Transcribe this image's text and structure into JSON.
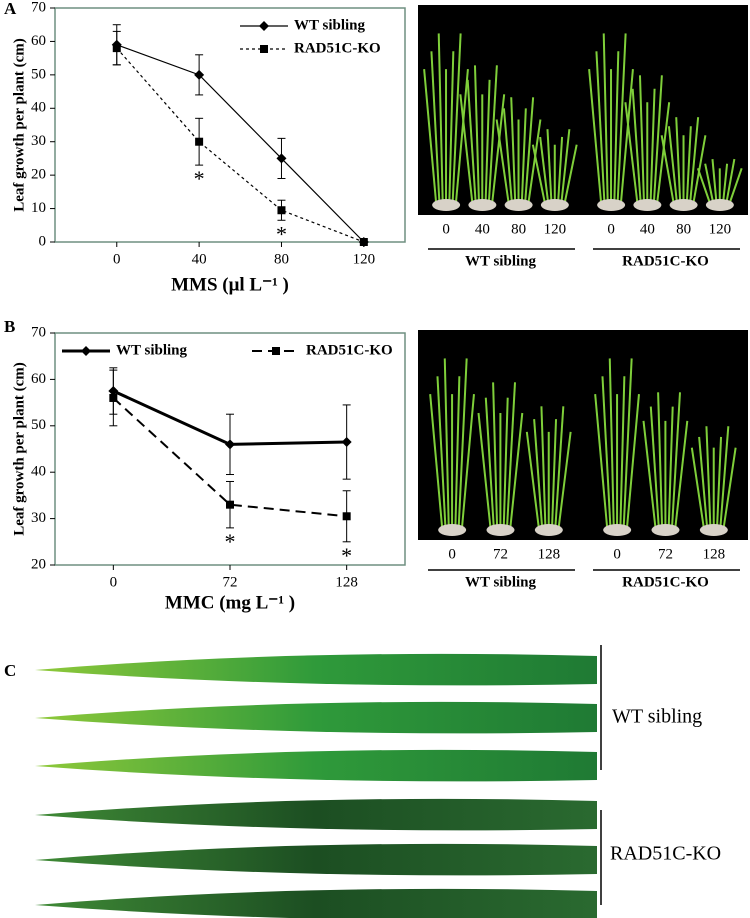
{
  "chart_data": [
    {
      "type": "line",
      "panel": "A",
      "ylabel": "Leaf  growth per plant (cm)",
      "xlabel": "MMS (μl L⁻¹ )",
      "x": [
        0,
        40,
        80,
        120
      ],
      "xlim": [
        -30,
        140
      ],
      "xticks": [
        0,
        40,
        80,
        120
      ],
      "ylim": [
        0,
        70
      ],
      "yticks": [
        0,
        10,
        20,
        30,
        40,
        50,
        60,
        70
      ],
      "legend": "upper right",
      "series": [
        {
          "name": "WT sibling",
          "color": "#000000",
          "line_style": "solid",
          "line_width": 1.2,
          "marker": "diamond",
          "values": [
            59,
            50,
            25,
            0
          ],
          "errors": [
            6,
            6,
            6,
            0
          ]
        },
        {
          "name": "RAD51C-KO",
          "color": "#000000",
          "line_style": "dotted",
          "line_width": 1.2,
          "marker": "square",
          "values": [
            58,
            30,
            9.5,
            0
          ],
          "errors": [
            5,
            7,
            3,
            0
          ],
          "significance": [
            null,
            "*",
            "*",
            null
          ]
        }
      ]
    },
    {
      "type": "line",
      "panel": "B",
      "ylabel": "Leaf  growth per plant (cm)",
      "xlabel": "MMC (mg L⁻¹ )",
      "categories": [
        "0",
        "72",
        "128"
      ],
      "ylim": [
        20,
        70
      ],
      "yticks": [
        20,
        30,
        40,
        50,
        60,
        70
      ],
      "legend": "upper",
      "series": [
        {
          "name": "WT sibling",
          "color": "#000000",
          "line_style": "solid",
          "line_width": 3,
          "marker": "diamond",
          "values": [
            57.5,
            46,
            46.5
          ],
          "errors": [
            5,
            6.5,
            8
          ]
        },
        {
          "name": "RAD51C-KO",
          "color": "#000000",
          "line_style": "dashed",
          "line_width": 2,
          "marker": "square",
          "values": [
            56,
            33,
            30.5
          ],
          "errors": [
            6,
            5,
            5.5
          ],
          "significance": [
            null,
            "*",
            "*"
          ]
        }
      ]
    }
  ],
  "photos": [
    {
      "doses": [
        "0",
        "40",
        "80",
        "120"
      ],
      "groups": [
        "WT sibling",
        "RAD51C-KO"
      ]
    },
    {
      "doses": [
        "0",
        "72",
        "128"
      ],
      "groups": [
        "WT sibling",
        "RAD51C-KO"
      ]
    }
  ],
  "leaf_panel": {
    "panel": "C",
    "groups": [
      "WT sibling",
      "RAD51C-KO"
    ]
  }
}
